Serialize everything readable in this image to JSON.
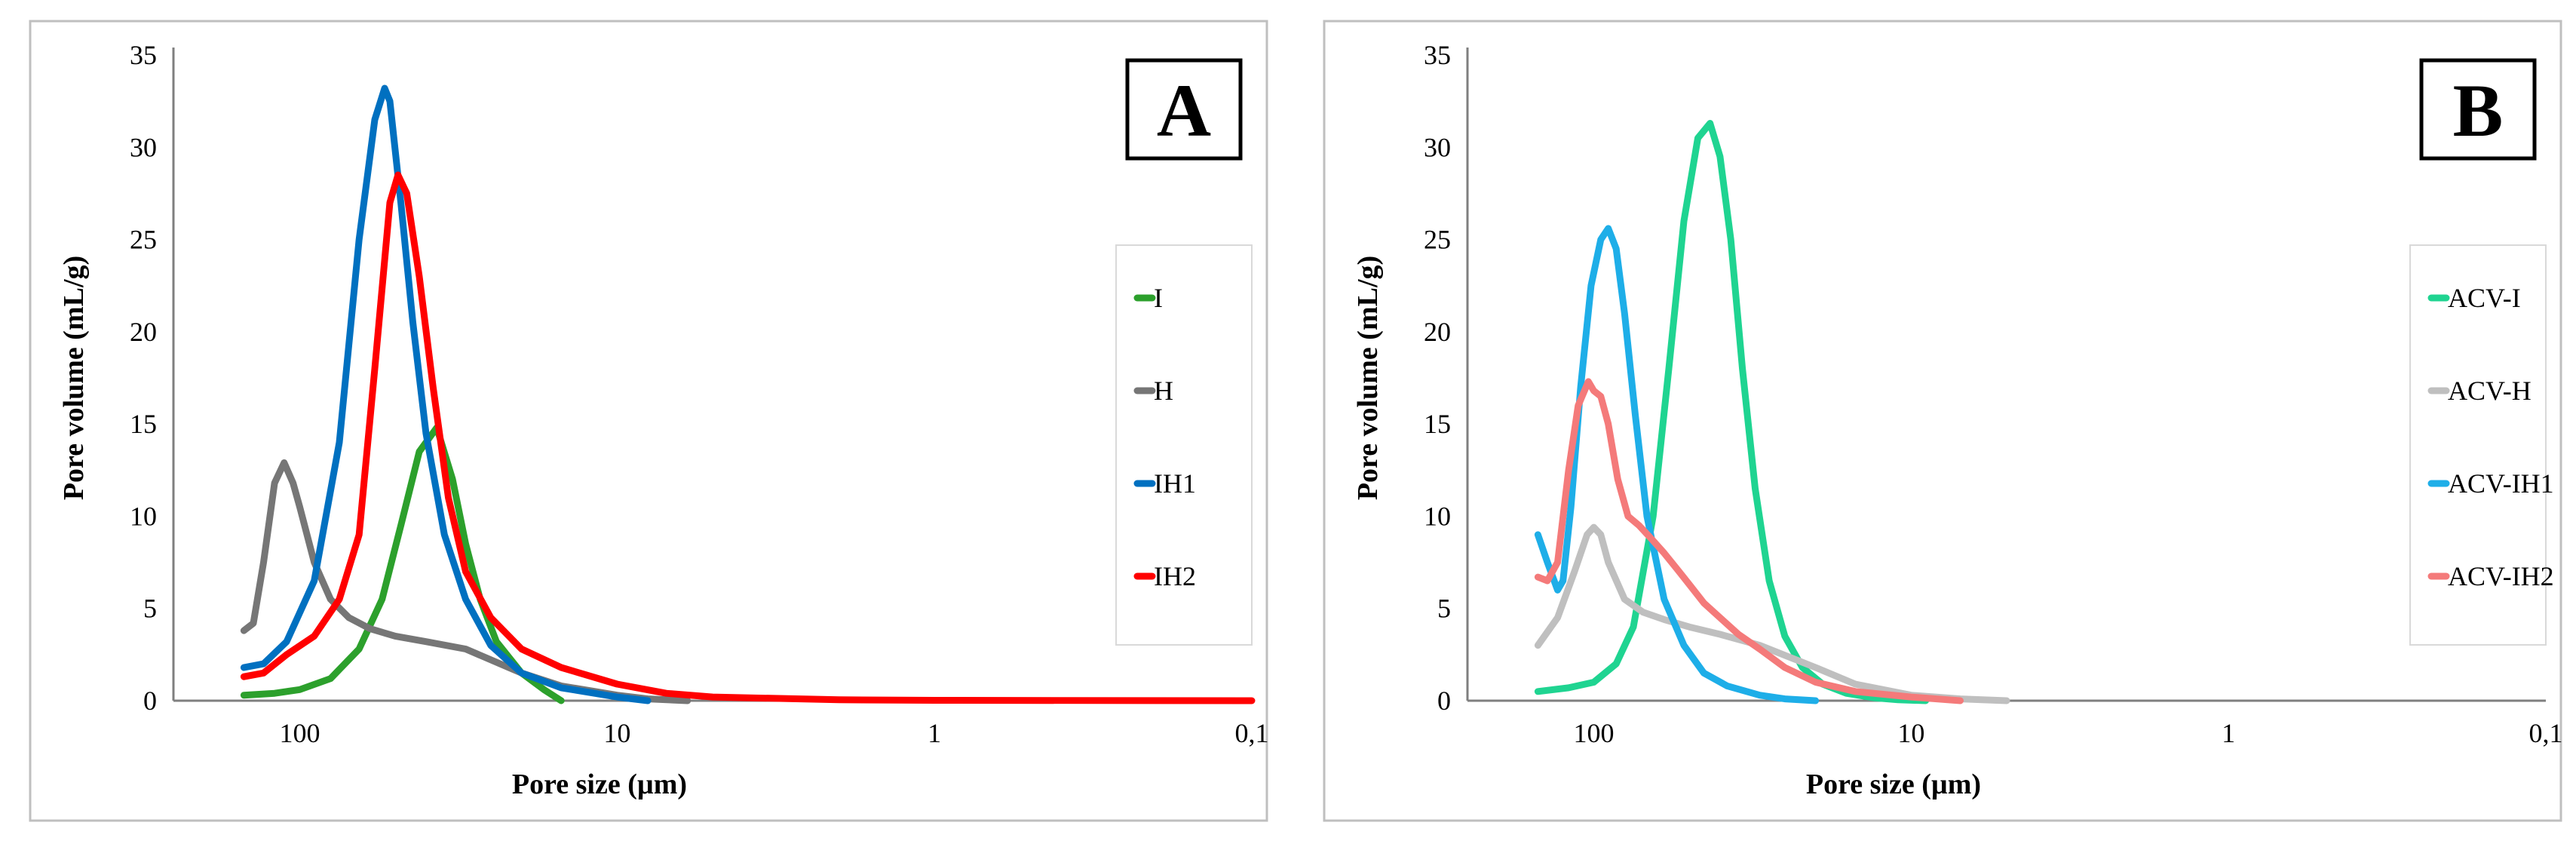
{
  "chart_data": [
    {
      "type": "line",
      "panel_label": "A",
      "title": "",
      "xlabel": "Pore size (µm)",
      "ylabel": "Pore volume (mL/g)",
      "x_scale": "log",
      "x_reversed": true,
      "xlim": [
        250,
        0.1
      ],
      "ylim": [
        0,
        35
      ],
      "y_ticks": [
        0,
        5,
        10,
        15,
        20,
        25,
        30,
        35
      ],
      "x_ticks": [
        100,
        10,
        1,
        0.1
      ],
      "x_tick_labels": [
        "100",
        "10",
        "1",
        "0,1"
      ],
      "series": [
        {
          "name": "I",
          "color": "#2ca02c",
          "x": [
            150,
            120,
            100,
            80,
            65,
            55,
            48,
            42,
            37,
            33,
            30,
            27,
            24,
            20,
            17,
            15
          ],
          "y": [
            0.3,
            0.4,
            0.6,
            1.2,
            2.8,
            5.5,
            9.5,
            13.5,
            14.8,
            12.0,
            8.5,
            5.5,
            3.2,
            1.5,
            0.6,
            0
          ]
        },
        {
          "name": "H",
          "color": "#767676",
          "x": [
            150,
            140,
            130,
            120,
            112,
            105,
            100,
            90,
            80,
            70,
            60,
            50,
            40,
            30,
            20,
            15,
            10,
            8,
            6
          ],
          "y": [
            3.8,
            4.2,
            7.5,
            11.8,
            12.9,
            11.8,
            10.5,
            7.5,
            5.5,
            4.5,
            3.9,
            3.5,
            3.2,
            2.8,
            1.5,
            0.8,
            0.3,
            0.1,
            0
          ]
        },
        {
          "name": "IH1",
          "color": "#0070c0",
          "x": [
            150,
            130,
            110,
            90,
            75,
            65,
            58,
            54,
            52,
            48,
            44,
            40,
            35,
            30,
            25,
            20,
            15,
            10,
            8
          ],
          "y": [
            1.8,
            2.0,
            3.2,
            6.5,
            14.0,
            25.0,
            31.5,
            33.2,
            32.5,
            27.0,
            20.5,
            14.5,
            9.0,
            5.5,
            3.0,
            1.5,
            0.7,
            0.2,
            0
          ]
        },
        {
          "name": "IH2",
          "color": "#ff0000",
          "x": [
            150,
            130,
            110,
            90,
            75,
            65,
            58,
            52,
            49,
            46,
            42,
            38,
            34,
            30,
            25,
            20,
            15,
            10,
            7,
            5,
            2,
            1,
            0.1
          ],
          "y": [
            1.3,
            1.5,
            2.5,
            3.5,
            5.5,
            9.0,
            18.0,
            27.0,
            28.5,
            27.5,
            23.0,
            17.0,
            11.0,
            7.0,
            4.5,
            2.8,
            1.8,
            0.9,
            0.4,
            0.2,
            0.05,
            0.02,
            0
          ]
        }
      ]
    },
    {
      "type": "line",
      "panel_label": "B",
      "title": "",
      "xlabel": "Pore size (µm)",
      "ylabel": "Pore volume (mL/g)",
      "x_scale": "log",
      "x_reversed": true,
      "xlim": [
        250,
        0.1
      ],
      "ylim": [
        0,
        35
      ],
      "y_ticks": [
        0,
        5,
        10,
        15,
        20,
        25,
        30,
        35
      ],
      "x_ticks": [
        100,
        10,
        1,
        0.1
      ],
      "x_tick_labels": [
        "100",
        "10",
        "1",
        "0,1"
      ],
      "series": [
        {
          "name": "ACV-I",
          "color": "#1fd491",
          "x": [
            150,
            120,
            100,
            85,
            75,
            65,
            58,
            52,
            47,
            43,
            40,
            37,
            34,
            31,
            28,
            25,
            22,
            19,
            16,
            13,
            11,
            9
          ],
          "y": [
            0.5,
            0.7,
            1.0,
            2.0,
            4.0,
            10.0,
            18.0,
            26.0,
            30.5,
            31.3,
            29.5,
            25.0,
            18.0,
            11.5,
            6.5,
            3.5,
            1.8,
            0.9,
            0.4,
            0.15,
            0.05,
            0
          ]
        },
        {
          "name": "ACV-H",
          "color": "#bfbfbf",
          "x": [
            150,
            130,
            115,
            105,
            100,
            95,
            90,
            80,
            70,
            60,
            50,
            40,
            30,
            20,
            15,
            10,
            7,
            5
          ],
          "y": [
            3.0,
            4.5,
            7.0,
            9.0,
            9.4,
            9.0,
            7.5,
            5.5,
            4.8,
            4.4,
            4.0,
            3.6,
            3.0,
            1.8,
            0.9,
            0.3,
            0.1,
            0
          ]
        },
        {
          "name": "ACV-IH1",
          "color": "#1eaee8",
          "x": [
            150,
            140,
            130,
            125,
            118,
            110,
            102,
            95,
            90,
            85,
            80,
            74,
            68,
            60,
            52,
            45,
            38,
            30,
            25,
            20
          ],
          "y": [
            9.0,
            7.5,
            6.0,
            6.5,
            10.5,
            17.0,
            22.5,
            25.0,
            25.6,
            24.5,
            21.0,
            15.5,
            10.0,
            5.5,
            3.0,
            1.5,
            0.8,
            0.3,
            0.1,
            0
          ]
        },
        {
          "name": "ACV-IH2",
          "color": "#f47a7a",
          "x": [
            150,
            140,
            130,
            120,
            112,
            104,
            100,
            95,
            90,
            84,
            78,
            72,
            66,
            60,
            55,
            50,
            45,
            40,
            35,
            30,
            25,
            20,
            15,
            10,
            7
          ],
          "y": [
            6.7,
            6.5,
            7.5,
            12.5,
            16.0,
            17.3,
            16.8,
            16.5,
            15.0,
            12.0,
            10.0,
            9.5,
            8.8,
            8.0,
            7.2,
            6.3,
            5.3,
            4.5,
            3.6,
            2.8,
            1.8,
            1.0,
            0.5,
            0.2,
            0
          ]
        }
      ]
    }
  ]
}
